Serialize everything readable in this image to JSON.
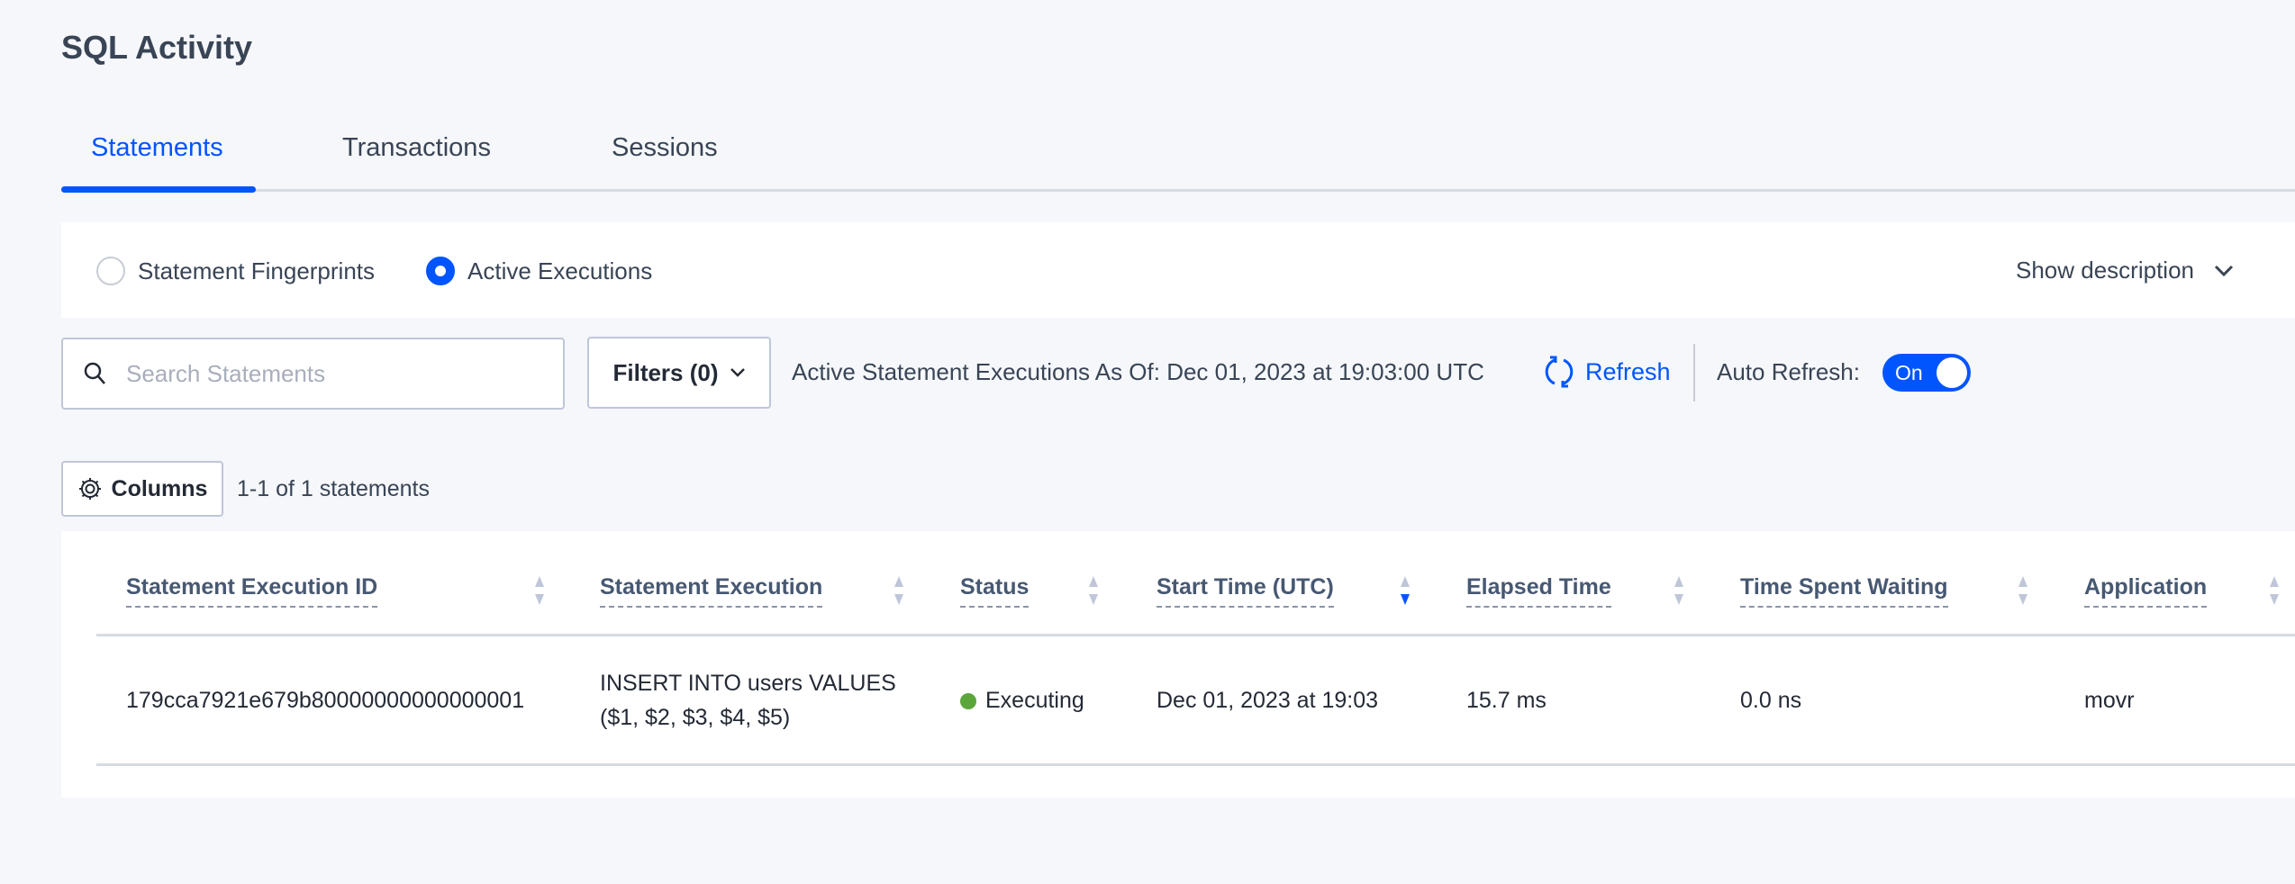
{
  "page_title": "SQL Activity",
  "tabs": [
    {
      "label": "Statements",
      "active": true
    },
    {
      "label": "Transactions"
    },
    {
      "label": "Sessions"
    }
  ],
  "view_options": {
    "fingerprints": "Statement Fingerprints",
    "active": "Active Executions",
    "selected": "Active Executions"
  },
  "show_description": "Show description",
  "search": {
    "placeholder": "Search Statements",
    "value": ""
  },
  "filters_label": "Filters (0)",
  "as_of": "Active Statement Executions As Of: Dec 01, 2023 at 19:03:00 UTC",
  "refresh_label": "Refresh",
  "auto_refresh": {
    "label": "Auto Refresh:",
    "state": "On"
  },
  "columns_label": "Columns",
  "count_text": "1-1 of 1 statements",
  "colors": {
    "accent": "#0055ff",
    "status_executing": "#5ba63a"
  },
  "table": {
    "headers": [
      "Statement Execution ID",
      "Statement Execution",
      "Status",
      "Start Time (UTC)",
      "Elapsed Time",
      "Time Spent Waiting",
      "Application"
    ],
    "sorted_column": "Start Time (UTC)",
    "sort_direction": "descending",
    "rows": [
      {
        "id": "179cca7921e679b80000000000000001",
        "statement_line1": "INSERT INTO users VALUES",
        "statement_line2": "($1, $2, $3, $4, $5)",
        "status": "Executing",
        "start": "Dec 01, 2023 at 19:03",
        "elapsed": "15.7 ms",
        "waiting": "0.0 ns",
        "application": "movr"
      }
    ]
  }
}
